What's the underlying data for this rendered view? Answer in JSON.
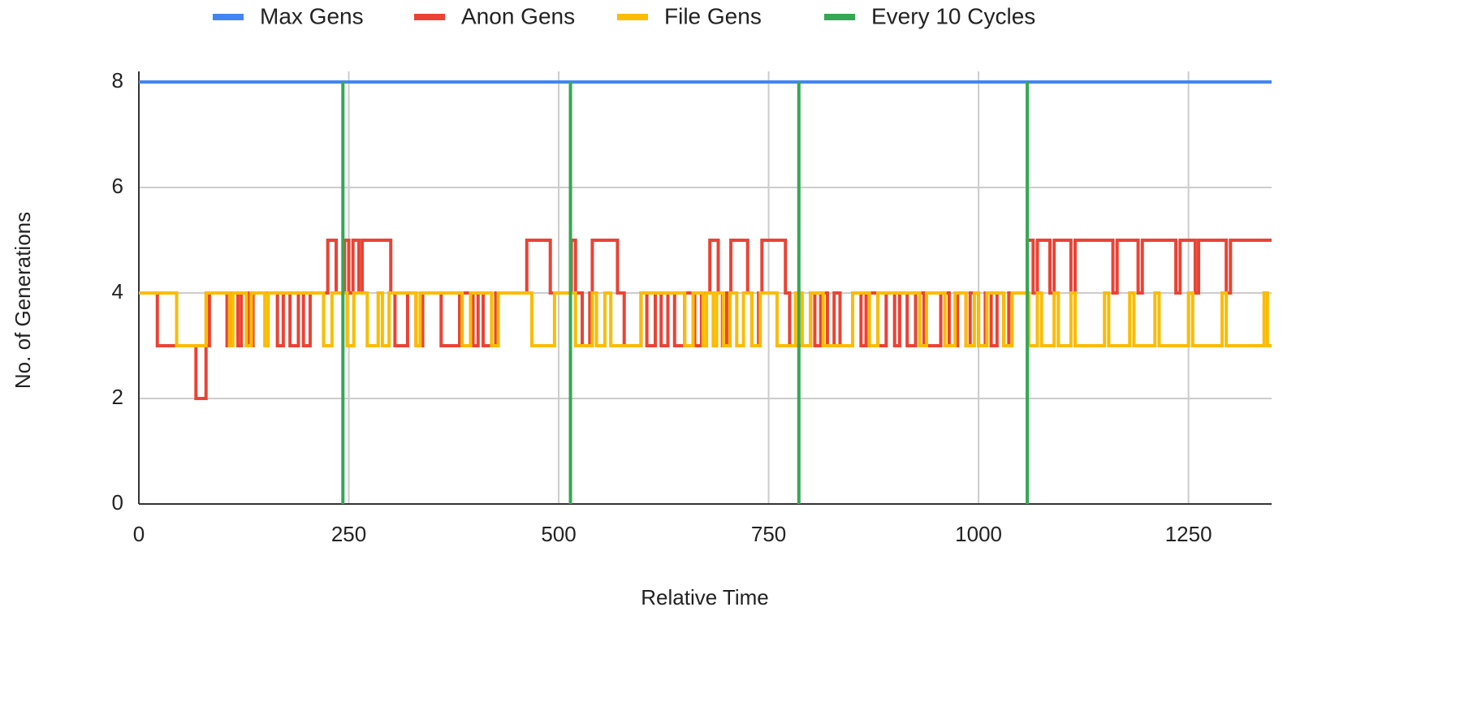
{
  "chart_data": {
    "type": "line",
    "step": true,
    "grid": true,
    "legend": "top",
    "xlabel": "Relative Time",
    "ylabel": "No. of Generations",
    "xlim": [
      0,
      1349
    ],
    "ylim": [
      0,
      8.2
    ],
    "xticks": [
      0,
      250,
      500,
      750,
      1000,
      1250
    ],
    "yticks": [
      0,
      2,
      4,
      6,
      8
    ],
    "series": [
      {
        "name": "Max Gens",
        "color": "#4285f4",
        "x": [
          0,
          1349
        ],
        "values": [
          8,
          8
        ]
      },
      {
        "name": "Anon Gens",
        "color": "#ea4335",
        "x": [
          0,
          22,
          68,
          80,
          84,
          105,
          110,
          118,
          122,
          130,
          136,
          165,
          172,
          180,
          190,
          196,
          204,
          225,
          235,
          245,
          250,
          255,
          262,
          266,
          300,
          305,
          320,
          330,
          338,
          360,
          382,
          398,
          404,
          410,
          425,
          462,
          490,
          515,
          520,
          528,
          537,
          540,
          570,
          578,
          598,
          605,
          615,
          622,
          630,
          638,
          650,
          662,
          670,
          680,
          690,
          695,
          700,
          705,
          725,
          730,
          738,
          742,
          770,
          775,
          800,
          805,
          812,
          820,
          828,
          835,
          850,
          860,
          866,
          880,
          890,
          900,
          906,
          915,
          925,
          935,
          955,
          965,
          975,
          985,
          990,
          1000,
          1008,
          1015,
          1022,
          1030,
          1036,
          1058,
          1065,
          1070,
          1085,
          1090,
          1110,
          1115,
          1160,
          1165,
          1190,
          1195,
          1235,
          1240,
          1258,
          1262,
          1295,
          1300,
          1349
        ],
        "values": [
          4,
          3,
          2,
          3,
          4,
          3,
          4,
          3,
          4,
          3,
          4,
          3,
          4,
          3,
          4,
          3,
          4,
          5,
          4,
          5,
          4,
          5,
          4,
          5,
          4,
          3,
          4,
          3,
          4,
          3,
          4,
          3,
          4,
          3,
          4,
          5,
          4,
          5,
          4,
          3,
          4,
          5,
          4,
          3,
          4,
          3,
          4,
          3,
          4,
          3,
          4,
          3,
          4,
          5,
          4,
          3,
          4,
          5,
          4,
          3,
          4,
          5,
          4,
          3,
          4,
          3,
          4,
          3,
          4,
          3,
          4,
          3,
          4,
          3,
          4,
          3,
          4,
          3,
          4,
          3,
          4,
          3,
          4,
          3,
          4,
          3,
          4,
          3,
          4,
          3,
          4,
          5,
          4,
          5,
          4,
          5,
          4,
          5,
          4,
          5,
          4,
          5,
          4,
          5,
          4,
          5,
          4,
          5,
          5
        ]
      },
      {
        "name": "File Gens",
        "color": "#fbbc04",
        "x": [
          0,
          45,
          80,
          108,
          112,
          128,
          134,
          150,
          154,
          220,
          230,
          248,
          256,
          272,
          285,
          290,
          298,
          330,
          335,
          385,
          395,
          420,
          428,
          468,
          495,
          520,
          540,
          545,
          555,
          562,
          598,
          650,
          660,
          672,
          676,
          684,
          688,
          696,
          704,
          712,
          720,
          730,
          740,
          760,
          782,
          790,
          800,
          815,
          850,
          870,
          880,
          930,
          938,
          960,
          972,
          985,
          995,
          1000,
          1010,
          1030,
          1040,
          1060,
          1070,
          1075,
          1090,
          1095,
          1110,
          1115,
          1150,
          1155,
          1180,
          1185,
          1210,
          1215,
          1250,
          1255,
          1290,
          1295,
          1340,
          1344,
          1349
        ],
        "values": [
          4,
          3,
          4,
          3,
          4,
          3,
          4,
          3,
          4,
          3,
          4,
          3,
          4,
          3,
          4,
          3,
          4,
          3,
          4,
          3,
          4,
          3,
          4,
          3,
          4,
          3,
          4,
          3,
          4,
          3,
          4,
          3,
          4,
          3,
          4,
          3,
          4,
          3,
          4,
          3,
          4,
          3,
          4,
          3,
          4,
          3,
          4,
          3,
          4,
          3,
          4,
          3,
          4,
          3,
          4,
          3,
          4,
          3,
          4,
          3,
          4,
          3,
          4,
          3,
          4,
          3,
          4,
          3,
          4,
          3,
          4,
          3,
          4,
          3,
          4,
          3,
          4,
          3,
          4,
          3,
          3
        ]
      },
      {
        "name": "Every 10 Cycles",
        "color": "#34a853",
        "step": false,
        "x": [
          243,
          243,
          243,
          514,
          514,
          514,
          786,
          786,
          786,
          1058,
          1058
        ],
        "values": [
          0,
          8,
          null,
          0,
          8,
          null,
          0,
          8,
          null,
          0,
          8
        ]
      }
    ]
  }
}
